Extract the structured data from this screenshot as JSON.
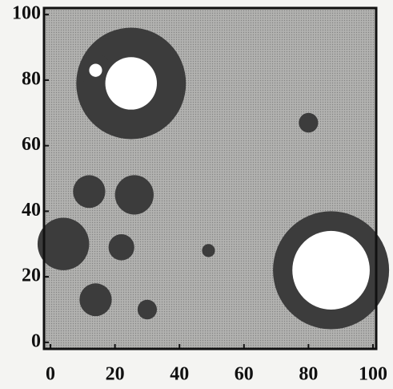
{
  "chart_data": {
    "type": "lattice",
    "xlim": [
      -2,
      101
    ],
    "ylim": [
      -2,
      102
    ],
    "xticks": [
      0,
      20,
      40,
      60,
      80,
      100
    ],
    "yticks": [
      0,
      20,
      40,
      60,
      80,
      100
    ],
    "background_color": "#b2b2b0",
    "cluster_color": "#3c3c3c",
    "core_color": "#ffffff",
    "clusters": [
      {
        "x": 25,
        "y": 79,
        "r": 17,
        "core_r": 8
      },
      {
        "x": 87,
        "y": 22,
        "r": 18,
        "core_r": 12
      },
      {
        "x": 14,
        "y": 83,
        "r": 5,
        "core_r": 2
      },
      {
        "x": 4,
        "y": 30,
        "r": 8
      },
      {
        "x": 14,
        "y": 13,
        "r": 5
      },
      {
        "x": 22,
        "y": 29,
        "r": 4
      },
      {
        "x": 26,
        "y": 45,
        "r": 6
      },
      {
        "x": 12,
        "y": 46,
        "r": 5
      },
      {
        "x": 80,
        "y": 67,
        "r": 3
      },
      {
        "x": 49,
        "y": 28,
        "r": 2
      },
      {
        "x": 30,
        "y": 10,
        "r": 3
      }
    ]
  }
}
